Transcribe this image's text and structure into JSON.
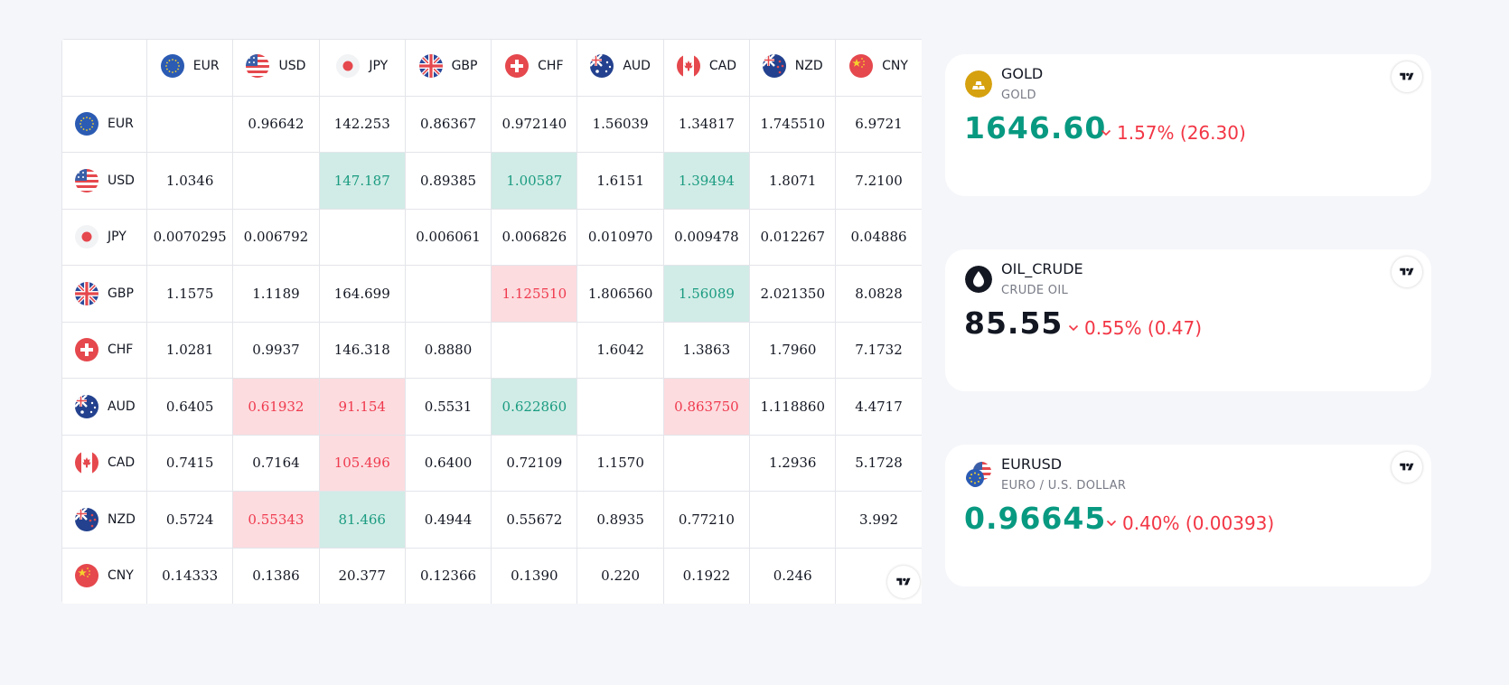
{
  "matrix": {
    "currencies": [
      "EUR",
      "USD",
      "JPY",
      "GBP",
      "CHF",
      "AUD",
      "CAD",
      "NZD",
      "CNY"
    ],
    "rows": [
      {
        "ccy": "EUR",
        "cells": [
          {
            "v": "",
            "s": "empty"
          },
          {
            "v": "0.96642",
            "s": "flat"
          },
          {
            "v": "142.253",
            "s": "flat"
          },
          {
            "v": "0.86367",
            "s": "flat"
          },
          {
            "v": "0.972140",
            "s": "flat"
          },
          {
            "v": "1.56039",
            "s": "flat"
          },
          {
            "v": "1.34817",
            "s": "flat"
          },
          {
            "v": "1.745510",
            "s": "flat"
          },
          {
            "v": "6.9721",
            "s": "flat"
          }
        ]
      },
      {
        "ccy": "USD",
        "cells": [
          {
            "v": "1.0346",
            "s": "flat"
          },
          {
            "v": "",
            "s": "empty"
          },
          {
            "v": "147.187",
            "s": "up"
          },
          {
            "v": "0.89385",
            "s": "flat"
          },
          {
            "v": "1.00587",
            "s": "up"
          },
          {
            "v": "1.6151",
            "s": "flat"
          },
          {
            "v": "1.39494",
            "s": "up"
          },
          {
            "v": "1.8071",
            "s": "flat"
          },
          {
            "v": "7.2100",
            "s": "flat"
          }
        ]
      },
      {
        "ccy": "JPY",
        "cells": [
          {
            "v": "0.0070295",
            "s": "flat"
          },
          {
            "v": "0.006792",
            "s": "flat"
          },
          {
            "v": "",
            "s": "empty"
          },
          {
            "v": "0.006061",
            "s": "flat"
          },
          {
            "v": "0.006826",
            "s": "flat"
          },
          {
            "v": "0.010970",
            "s": "flat"
          },
          {
            "v": "0.009478",
            "s": "flat"
          },
          {
            "v": "0.012267",
            "s": "flat"
          },
          {
            "v": "0.04886",
            "s": "flat"
          }
        ]
      },
      {
        "ccy": "GBP",
        "cells": [
          {
            "v": "1.1575",
            "s": "flat"
          },
          {
            "v": "1.1189",
            "s": "flat"
          },
          {
            "v": "164.699",
            "s": "flat"
          },
          {
            "v": "",
            "s": "empty"
          },
          {
            "v": "1.125510",
            "s": "down"
          },
          {
            "v": "1.806560",
            "s": "flat"
          },
          {
            "v": "1.56089",
            "s": "up"
          },
          {
            "v": "2.021350",
            "s": "flat"
          },
          {
            "v": "8.0828",
            "s": "flat"
          }
        ]
      },
      {
        "ccy": "CHF",
        "cells": [
          {
            "v": "1.0281",
            "s": "flat"
          },
          {
            "v": "0.9937",
            "s": "flat"
          },
          {
            "v": "146.318",
            "s": "flat"
          },
          {
            "v": "0.8880",
            "s": "flat"
          },
          {
            "v": "",
            "s": "empty"
          },
          {
            "v": "1.6042",
            "s": "flat"
          },
          {
            "v": "1.3863",
            "s": "flat"
          },
          {
            "v": "1.7960",
            "s": "flat"
          },
          {
            "v": "7.1732",
            "s": "flat"
          }
        ]
      },
      {
        "ccy": "AUD",
        "cells": [
          {
            "v": "0.6405",
            "s": "flat"
          },
          {
            "v": "0.61932",
            "s": "down"
          },
          {
            "v": "91.154",
            "s": "down"
          },
          {
            "v": "0.5531",
            "s": "flat"
          },
          {
            "v": "0.622860",
            "s": "up"
          },
          {
            "v": "",
            "s": "empty"
          },
          {
            "v": "0.863750",
            "s": "down"
          },
          {
            "v": "1.118860",
            "s": "flat"
          },
          {
            "v": "4.4717",
            "s": "flat"
          }
        ]
      },
      {
        "ccy": "CAD",
        "cells": [
          {
            "v": "0.7415",
            "s": "flat"
          },
          {
            "v": "0.7164",
            "s": "flat"
          },
          {
            "v": "105.496",
            "s": "down"
          },
          {
            "v": "0.6400",
            "s": "flat"
          },
          {
            "v": "0.72109",
            "s": "flat"
          },
          {
            "v": "1.1570",
            "s": "flat"
          },
          {
            "v": "",
            "s": "empty"
          },
          {
            "v": "1.2936",
            "s": "flat"
          },
          {
            "v": "5.1728",
            "s": "flat"
          }
        ]
      },
      {
        "ccy": "NZD",
        "cells": [
          {
            "v": "0.5724",
            "s": "flat"
          },
          {
            "v": "0.55343",
            "s": "down"
          },
          {
            "v": "81.466",
            "s": "up"
          },
          {
            "v": "0.4944",
            "s": "flat"
          },
          {
            "v": "0.55672",
            "s": "flat"
          },
          {
            "v": "0.8935",
            "s": "flat"
          },
          {
            "v": "0.77210",
            "s": "flat"
          },
          {
            "v": "",
            "s": "empty"
          },
          {
            "v": "3.992",
            "s": "flat"
          }
        ]
      },
      {
        "ccy": "CNY",
        "cells": [
          {
            "v": "0.14333",
            "s": "flat"
          },
          {
            "v": "0.1386",
            "s": "flat"
          },
          {
            "v": "20.377",
            "s": "flat"
          },
          {
            "v": "0.12366",
            "s": "flat"
          },
          {
            "v": "0.1390",
            "s": "flat"
          },
          {
            "v": "0.220",
            "s": "flat"
          },
          {
            "v": "0.1922",
            "s": "flat"
          },
          {
            "v": "0.246",
            "s": "flat"
          },
          {
            "v": "",
            "s": "empty"
          }
        ]
      }
    ],
    "logo_icon": "tradingview-logo-icon"
  },
  "cards": [
    {
      "symbol": "GOLD",
      "description": "GOLD",
      "price": "1646.60",
      "change": "1.57% (26.30)",
      "price_color": "green",
      "direction": "down",
      "icon": "gold-bars-icon"
    },
    {
      "symbol": "OIL_CRUDE",
      "description": "CRUDE OIL",
      "price": "85.55",
      "change": "0.55% (0.47)",
      "price_color": "dark",
      "direction": "down",
      "icon": "oil-drop-icon"
    },
    {
      "symbol": "EURUSD",
      "description": "EURO / U.S. DOLLAR",
      "price": "0.96645",
      "change": "0.40% (0.00393)",
      "price_color": "green",
      "direction": "down",
      "icon": "eur-usd-flags-icon"
    }
  ],
  "colors": {
    "up_bg": "#d1ece6",
    "up_text": "#1a9b81",
    "down_bg": "#fcdcdf",
    "down_text": "#ef3a4e",
    "price_green": "#089981",
    "change_red": "#f23645",
    "page_bg": "#f5f6fa"
  }
}
